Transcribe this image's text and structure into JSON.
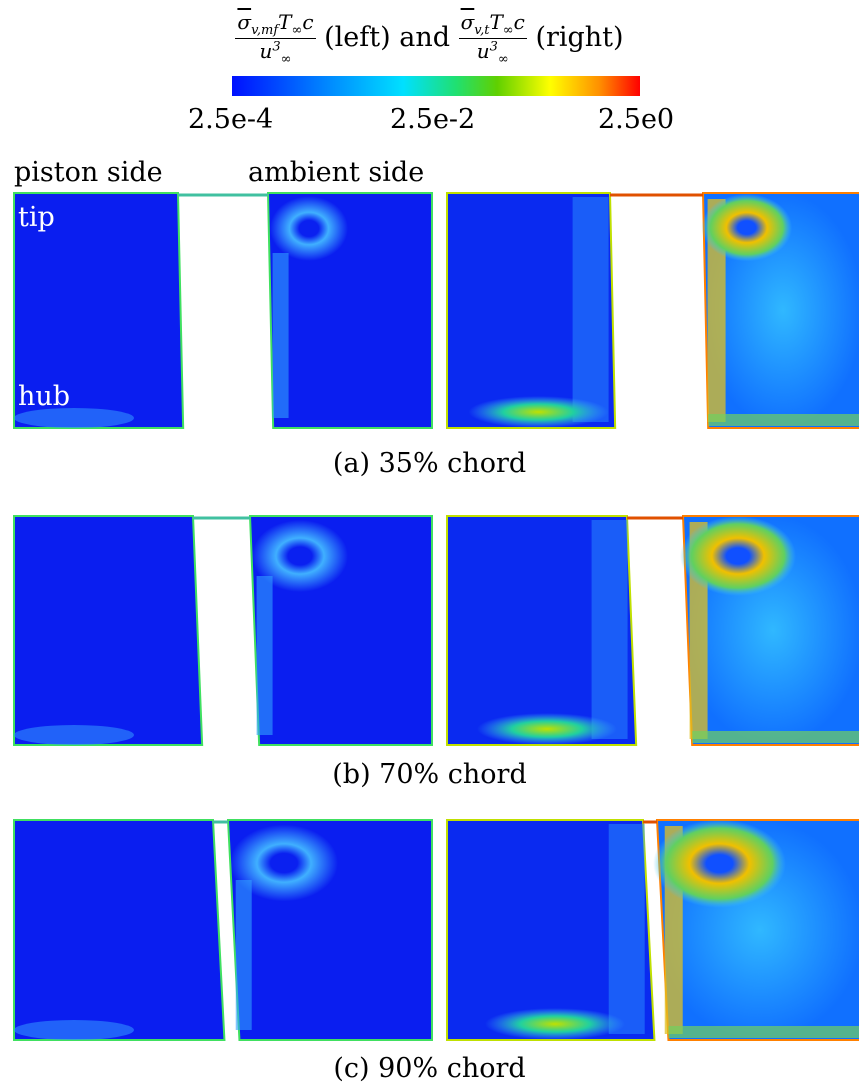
{
  "colorbar": {
    "title": {
      "left": {
        "num": [
          {
            "base": "σ",
            "sub": "v,mf"
          },
          {
            "base": "T",
            "sub": "∞"
          },
          {
            "base": "c"
          }
        ],
        "den": {
          "base": "u",
          "sub": "∞",
          "sup": "3"
        }
      },
      "left_note": "(left) and",
      "right": {
        "num": [
          {
            "base": "σ",
            "sub": "v,t"
          },
          {
            "base": "T",
            "sub": "∞"
          },
          {
            "base": "c"
          }
        ],
        "den": {
          "base": "u",
          "sub": "∞",
          "sup": "3"
        }
      },
      "right_note": "(right)"
    },
    "tick_labels": [
      "2.5e-4",
      "2.5e-2",
      "2.5e0"
    ]
  },
  "labels": {
    "piston": "piston side",
    "ambient": "ambient side",
    "tip": "tip",
    "hub": "hub"
  },
  "panels": [
    {
      "caption": "(a) 35% chord"
    },
    {
      "caption": "(b) 70% chord"
    },
    {
      "caption": "(c) 90% chord"
    }
  ]
}
